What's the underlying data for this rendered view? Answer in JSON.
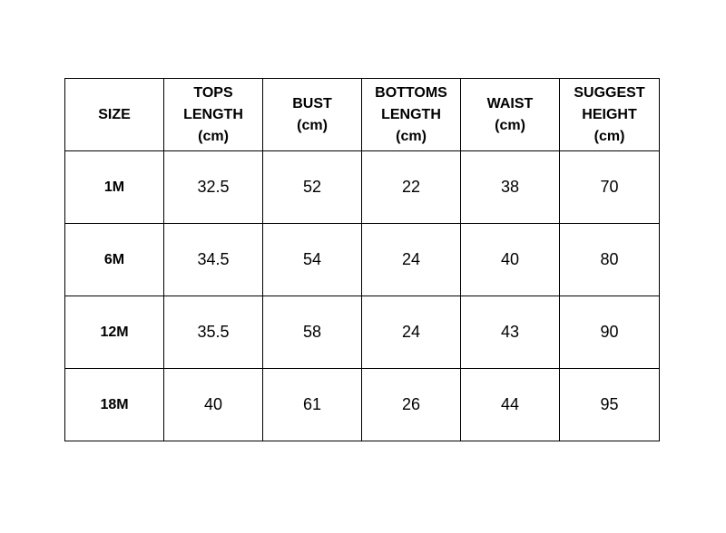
{
  "table": {
    "headers": [
      {
        "lines": [
          "SIZE"
        ]
      },
      {
        "lines": [
          "TOPS",
          "LENGTH",
          "(cm)"
        ]
      },
      {
        "lines": [
          "BUST",
          "(cm)"
        ]
      },
      {
        "lines": [
          "BOTTOMS",
          "LENGTH",
          "(cm)"
        ]
      },
      {
        "lines": [
          "WAIST",
          "(cm)"
        ]
      },
      {
        "lines": [
          "SUGGEST",
          "HEIGHT",
          "(cm)"
        ]
      }
    ],
    "rows": [
      [
        "1M",
        "32.5",
        "52",
        "22",
        "38",
        "70"
      ],
      [
        "6M",
        "34.5",
        "54",
        "24",
        "40",
        "80"
      ],
      [
        "12M",
        "35.5",
        "58",
        "24",
        "43",
        "90"
      ],
      [
        "18M",
        "40",
        "61",
        "26",
        "44",
        "95"
      ]
    ]
  }
}
